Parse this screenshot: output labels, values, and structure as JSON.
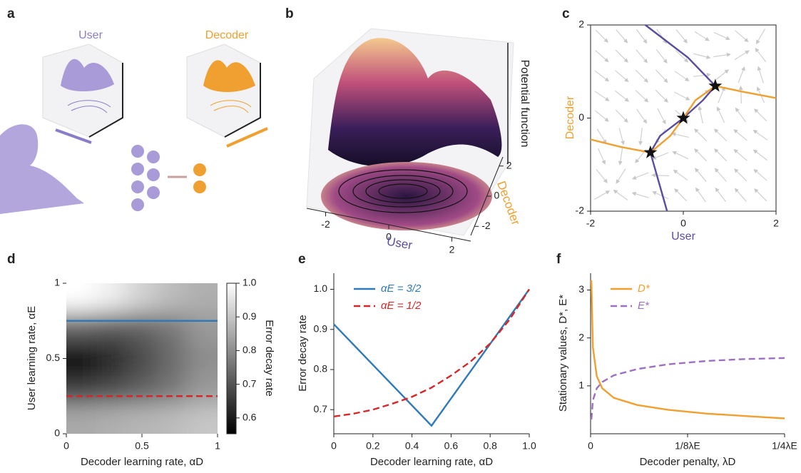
{
  "illustration": {
    "panel": "a",
    "user_label": "User",
    "decoder_label": "Decoder"
  },
  "chart_data": [
    {
      "type": "surface",
      "panel": "b",
      "xlabel": "User",
      "ylabel": "Decoder",
      "zlabel": "Potential function",
      "xlabel_color": "#5a4d9f",
      "ylabel_color": "#f0a030",
      "xlim": [
        -2.6,
        2.6
      ],
      "ylim": [
        -2.6,
        2.6
      ],
      "xticks": [
        -2,
        0,
        2
      ],
      "yticks": [
        -2,
        0,
        2
      ]
    },
    {
      "type": "line",
      "panel": "c",
      "xlabel": "User",
      "ylabel": "Decoder",
      "xlabel_color": "#5a4d9f",
      "ylabel_color": "#f0a030",
      "xlim": [
        -2,
        2
      ],
      "ylim": [
        -2,
        2
      ],
      "xticks": [
        -2,
        0,
        2
      ],
      "yticks": [
        -2,
        0,
        2
      ],
      "frame": true,
      "streamlines": true,
      "series": [
        {
          "color": "#5a4d9f",
          "x": [
            -0.35,
            -0.55,
            -0.71,
            -0.5,
            0,
            0.42,
            0.69,
            0.1,
            -0.82
          ],
          "values": [
            -2,
            -1.3,
            -0.74,
            -0.38,
            0,
            0.38,
            0.69,
            1.3,
            2
          ]
        },
        {
          "color": "#f0a030",
          "x": [
            -2,
            -1.35,
            -0.71,
            -0.28,
            0,
            0.26,
            0.69,
            1.26,
            2
          ],
          "values": [
            -0.46,
            -0.62,
            -0.74,
            -0.38,
            0,
            0.38,
            0.69,
            0.57,
            0.43
          ]
        },
        {
          "color": "#111111",
          "marker": "star",
          "x": [
            -0.71,
            0,
            0.69
          ],
          "values": [
            -0.74,
            0,
            0.69
          ]
        }
      ]
    },
    {
      "type": "heatmap",
      "panel": "d",
      "xlabel": "Decoder learning rate, αD",
      "ylabel": "User learning rate, αE",
      "colorbar_label": "Error decay rate",
      "xlim": [
        0,
        1
      ],
      "ylim": [
        0,
        1
      ],
      "xticks": [
        0,
        0.5,
        1
      ],
      "yticks": [
        0,
        0.5,
        1
      ],
      "clim": [
        0.553,
        1.0
      ],
      "cticks": [
        {
          "value": 1,
          "label": "1.0"
        },
        0.9,
        0.8,
        0.7,
        0.6
      ],
      "x": [
        0.1,
        0.3,
        0.5,
        0.7,
        0.9
      ],
      "y": [
        0.1,
        0.3,
        0.5,
        0.7,
        0.9
      ],
      "z": [
        [
          0.85,
          0.86,
          0.87,
          0.88,
          0.9
        ],
        [
          0.66,
          0.68,
          0.72,
          0.76,
          0.82
        ],
        [
          0.55,
          0.62,
          0.68,
          0.74,
          0.8
        ],
        [
          0.72,
          0.7,
          0.72,
          0.76,
          0.82
        ],
        [
          1.0,
          0.97,
          0.92,
          0.88,
          0.86
        ]
      ],
      "hlines": [
        {
          "value": 0.75,
          "color": "#2f7ab8",
          "dashed": false
        },
        {
          "value": 0.25,
          "color": "#d62728",
          "dashed": true
        }
      ]
    },
    {
      "type": "line",
      "panel": "e",
      "xlabel": "Decoder learning rate, αD",
      "ylabel": "Error decay rate",
      "legend": "upper left",
      "xlim": [
        0,
        1
      ],
      "ylim": [
        0.64,
        1.04
      ],
      "xticks": [
        0,
        0.2,
        0.4,
        0.6,
        0.8,
        {
          "value": 1,
          "label": "1.0"
        }
      ],
      "yticks": [
        0.7,
        0.8,
        0.9,
        {
          "value": 1,
          "label": "1.0"
        }
      ],
      "series": [
        {
          "name": "αE = 3/2",
          "color": "#2f7ab8",
          "x": [
            0,
            0.5,
            1
          ],
          "values": [
            0.913,
            0.66,
            1.0
          ]
        },
        {
          "name": "αE = 1/2",
          "color": "#d62728",
          "dashed": true,
          "x": [
            0,
            0.1,
            0.2,
            0.3,
            0.4,
            0.5,
            0.6,
            0.7,
            0.8,
            0.9,
            1
          ],
          "values": [
            0.683,
            0.69,
            0.7,
            0.715,
            0.732,
            0.755,
            0.785,
            0.82,
            0.865,
            0.925,
            1.0
          ]
        }
      ]
    },
    {
      "type": "line",
      "panel": "f",
      "xlabel": "Decoder penalty, λD",
      "ylabel": "Stationary values, D*, E*",
      "legend": "upper left",
      "xlim": [
        0,
        0.25
      ],
      "ylim": [
        0,
        3.35
      ],
      "xticks": [
        0,
        {
          "value": 0.125,
          "label": "1/8λE"
        },
        {
          "value": 0.25,
          "label": "1/4λE"
        }
      ],
      "yticks": [
        1,
        2,
        3
      ],
      "x": [
        0.001,
        0.003,
        0.008,
        0.015,
        0.03,
        0.06,
        0.1,
        0.15,
        0.2,
        0.25
      ],
      "series": [
        {
          "name": "D*",
          "color": "#f0a030",
          "values": [
            3.2,
            1.8,
            1.2,
            0.95,
            0.75,
            0.6,
            0.5,
            0.42,
            0.37,
            0.32
          ]
        },
        {
          "name": "E*",
          "color": "#9b6fc4",
          "dashed": true,
          "values": [
            0.3,
            0.7,
            0.95,
            1.08,
            1.22,
            1.35,
            1.45,
            1.52,
            1.56,
            1.58
          ]
        }
      ]
    }
  ]
}
